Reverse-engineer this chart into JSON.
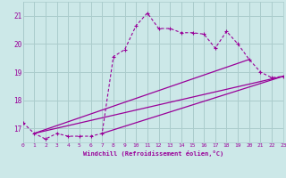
{
  "bg_color": "#cce8e8",
  "grid_color": "#aacccc",
  "line_color": "#990099",
  "xlabel": "Windchill (Refroidissement éolien,°C)",
  "xlim": [
    0,
    23
  ],
  "ylim": [
    16.5,
    21.5
  ],
  "yticks": [
    17,
    18,
    19,
    20,
    21
  ],
  "xticks": [
    0,
    1,
    2,
    3,
    4,
    5,
    6,
    7,
    8,
    9,
    10,
    11,
    12,
    13,
    14,
    15,
    16,
    17,
    18,
    19,
    20,
    21,
    22,
    23
  ],
  "series": [
    [
      0,
      17.2
    ],
    [
      1,
      16.82
    ],
    [
      2,
      16.62
    ],
    [
      3,
      16.82
    ],
    [
      4,
      16.72
    ],
    [
      5,
      16.72
    ],
    [
      6,
      16.72
    ],
    [
      7,
      16.82
    ],
    [
      8,
      19.55
    ],
    [
      9,
      19.8
    ],
    [
      10,
      20.65
    ],
    [
      11,
      21.1
    ],
    [
      12,
      20.55
    ],
    [
      13,
      20.55
    ],
    [
      14,
      20.4
    ],
    [
      15,
      20.4
    ],
    [
      16,
      20.35
    ],
    [
      17,
      19.85
    ],
    [
      18,
      20.45
    ],
    [
      19,
      20.0
    ],
    [
      20,
      19.45
    ],
    [
      21,
      19.0
    ],
    [
      22,
      18.8
    ],
    [
      23,
      18.85
    ]
  ],
  "line2": [
    [
      1,
      16.82
    ],
    [
      23,
      18.85
    ]
  ],
  "line3": [
    [
      1,
      16.82
    ],
    [
      20,
      19.45
    ]
  ],
  "line4": [
    [
      7,
      16.82
    ],
    [
      23,
      18.85
    ]
  ]
}
